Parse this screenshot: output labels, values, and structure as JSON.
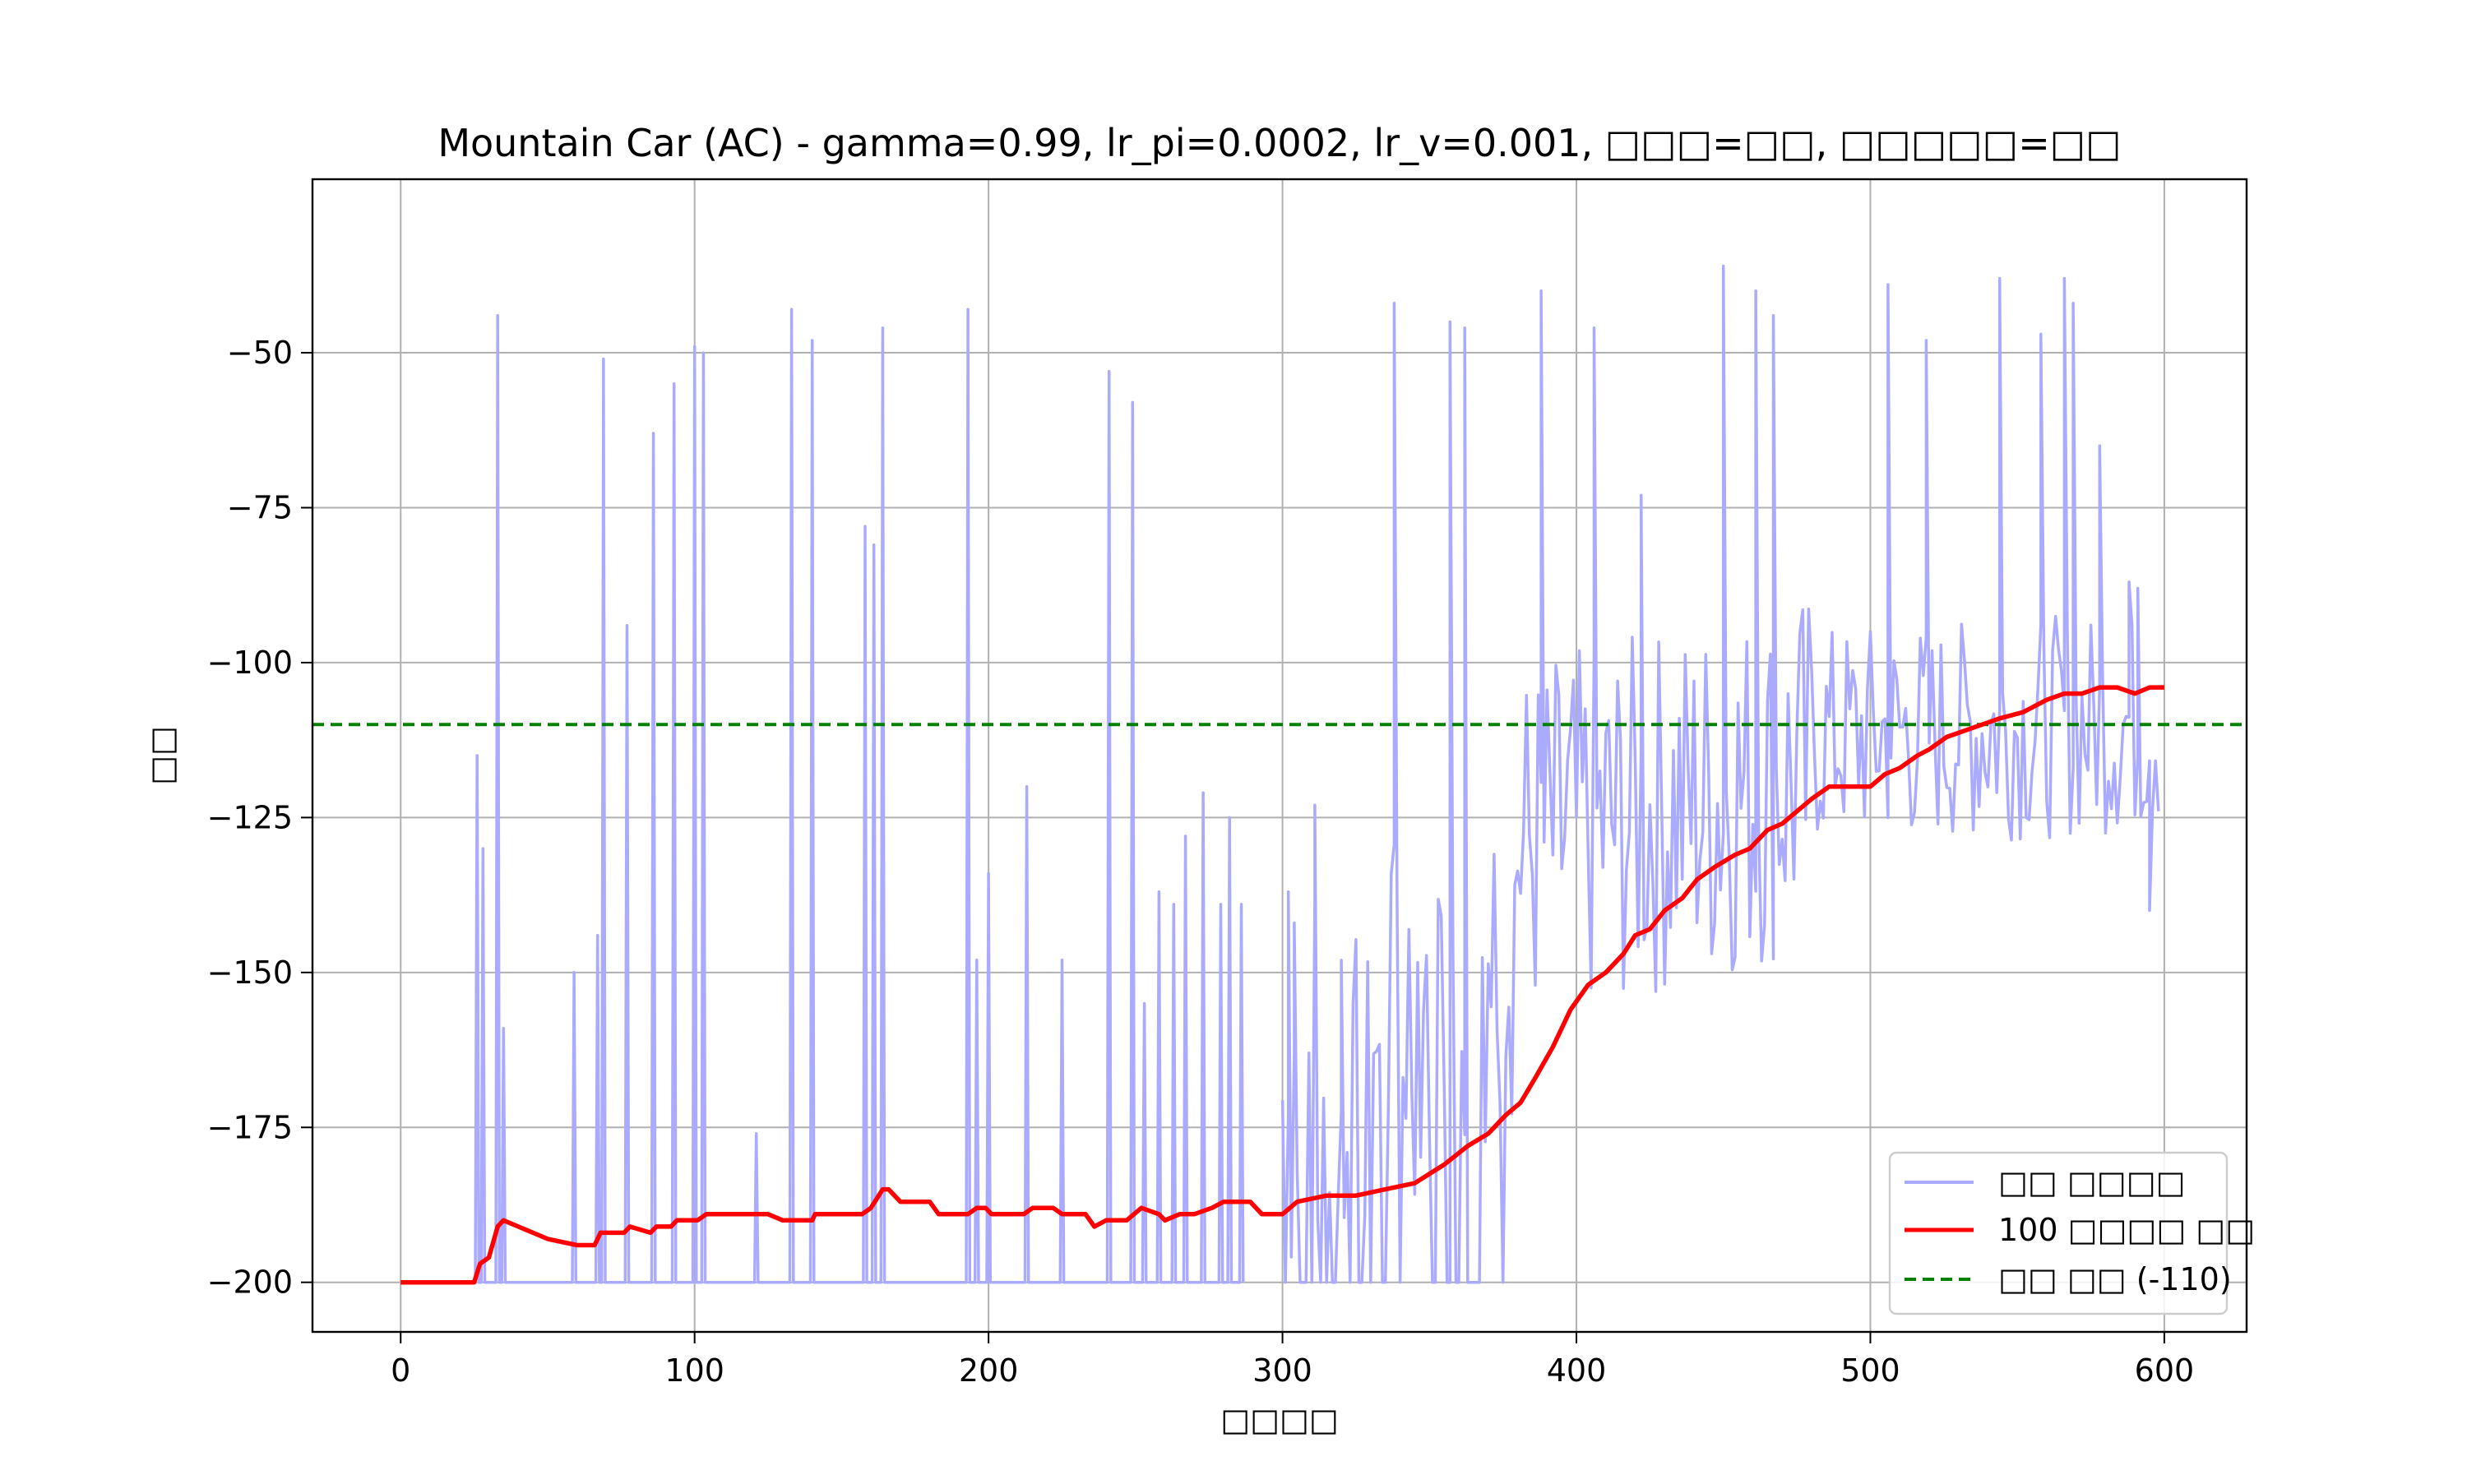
{
  "chart_data": {
    "type": "line",
    "title": "Mountain Car (AC) - gamma=0.99, lr_pi=0.0002, lr_v=0.001, □□□=□□, □□□□□=□□",
    "xlabel": "□□□□",
    "ylabel": "□□",
    "xlim": [
      -30,
      628
    ],
    "ylim": [
      -208,
      -22
    ],
    "xticks": [
      0,
      100,
      200,
      300,
      400,
      500,
      600
    ],
    "yticks": [
      -200,
      -175,
      -150,
      -125,
      -100,
      -75,
      -50
    ],
    "ytick_labels": [
      "−200",
      "−175",
      "−150",
      "−125",
      "−100",
      "−75",
      "−50"
    ],
    "grid": true,
    "legend_position": "lower-right",
    "colors": {
      "raw": "#aaaaff",
      "moving": "#ff0000",
      "target": "#008000"
    },
    "raw_series_label": "□□ □□□□",
    "moving_series_label": "100 □□□□ □□",
    "target_label": "□□ □□ (-110)",
    "target_value": -110,
    "raw_episode_spikes": [
      [
        26,
        -115
      ],
      [
        28,
        -130
      ],
      [
        33,
        -44
      ],
      [
        35,
        -159
      ],
      [
        59,
        -150
      ],
      [
        67,
        -144
      ],
      [
        69,
        -51
      ],
      [
        77,
        -94
      ],
      [
        86,
        -63
      ],
      [
        93,
        -55
      ],
      [
        100,
        -49
      ],
      [
        103,
        -50
      ],
      [
        121,
        -176
      ],
      [
        133,
        -43
      ],
      [
        140,
        -48
      ],
      [
        158,
        -78
      ],
      [
        161,
        -81
      ],
      [
        164,
        -46
      ],
      [
        193,
        -43
      ],
      [
        196,
        -148
      ],
      [
        200,
        -134
      ],
      [
        213,
        -120
      ],
      [
        225,
        -148
      ],
      [
        241,
        -53
      ],
      [
        249,
        -58
      ],
      [
        253,
        -155
      ],
      [
        258,
        -137
      ],
      [
        263,
        -139
      ],
      [
        267,
        -128
      ],
      [
        273,
        -121
      ],
      [
        279,
        -139
      ],
      [
        282,
        -125
      ],
      [
        286,
        -139
      ],
      [
        302,
        -137
      ],
      [
        304,
        -142
      ],
      [
        311,
        -123
      ],
      [
        320,
        -148
      ],
      [
        338,
        -42
      ],
      [
        357,
        -45
      ],
      [
        362,
        -46
      ],
      [
        388,
        -40
      ],
      [
        406,
        -46
      ],
      [
        422,
        -73
      ],
      [
        450,
        -36
      ],
      [
        461,
        -40
      ],
      [
        467,
        -44
      ],
      [
        506,
        -39
      ],
      [
        519,
        -48
      ],
      [
        544,
        -38
      ],
      [
        558,
        -47
      ],
      [
        566,
        -38
      ],
      [
        569,
        -42
      ],
      [
        578,
        -65
      ],
      [
        588,
        -87
      ],
      [
        591,
        -88
      ],
      [
        595,
        -140
      ]
    ],
    "moving_average": [
      [
        0,
        -200
      ],
      [
        25,
        -200
      ],
      [
        27,
        -197
      ],
      [
        30,
        -196
      ],
      [
        33,
        -191
      ],
      [
        35,
        -190
      ],
      [
        40,
        -191
      ],
      [
        50,
        -193
      ],
      [
        60,
        -194
      ],
      [
        66,
        -194
      ],
      [
        68,
        -192
      ],
      [
        76,
        -192
      ],
      [
        78,
        -191
      ],
      [
        85,
        -192
      ],
      [
        87,
        -191
      ],
      [
        92,
        -191
      ],
      [
        94,
        -190
      ],
      [
        101,
        -190
      ],
      [
        104,
        -189
      ],
      [
        125,
        -189
      ],
      [
        130,
        -190
      ],
      [
        140,
        -190
      ],
      [
        141,
        -189
      ],
      [
        157,
        -189
      ],
      [
        160,
        -188
      ],
      [
        164,
        -185
      ],
      [
        166,
        -185
      ],
      [
        170,
        -187
      ],
      [
        180,
        -187
      ],
      [
        183,
        -189
      ],
      [
        193,
        -189
      ],
      [
        196,
        -188
      ],
      [
        199,
        -188
      ],
      [
        201,
        -189
      ],
      [
        212,
        -189
      ],
      [
        215,
        -188
      ],
      [
        222,
        -188
      ],
      [
        225,
        -189
      ],
      [
        233,
        -189
      ],
      [
        236,
        -191
      ],
      [
        240,
        -190
      ],
      [
        247,
        -190
      ],
      [
        252,
        -188
      ],
      [
        258,
        -189
      ],
      [
        260,
        -190
      ],
      [
        265,
        -189
      ],
      [
        270,
        -189
      ],
      [
        276,
        -188
      ],
      [
        280,
        -187
      ],
      [
        289,
        -187
      ],
      [
        293,
        -189
      ],
      [
        300,
        -189
      ],
      [
        305,
        -187
      ],
      [
        315,
        -186
      ],
      [
        325,
        -186
      ],
      [
        335,
        -185
      ],
      [
        345,
        -184
      ],
      [
        355,
        -181
      ],
      [
        363,
        -178
      ],
      [
        370,
        -176
      ],
      [
        376,
        -173
      ],
      [
        381,
        -171
      ],
      [
        386,
        -167
      ],
      [
        392,
        -162
      ],
      [
        398,
        -156
      ],
      [
        404,
        -152
      ],
      [
        410,
        -150
      ],
      [
        416,
        -147
      ],
      [
        420,
        -144
      ],
      [
        425,
        -143
      ],
      [
        430,
        -140
      ],
      [
        436,
        -138
      ],
      [
        441,
        -135
      ],
      [
        447,
        -133
      ],
      [
        454,
        -131
      ],
      [
        459,
        -130
      ],
      [
        465,
        -127
      ],
      [
        470,
        -126
      ],
      [
        475,
        -124
      ],
      [
        480,
        -122
      ],
      [
        486,
        -120
      ],
      [
        492,
        -120
      ],
      [
        500,
        -120
      ],
      [
        505,
        -118
      ],
      [
        510,
        -117
      ],
      [
        516,
        -115
      ],
      [
        520,
        -114
      ],
      [
        526,
        -112
      ],
      [
        532,
        -111
      ],
      [
        538,
        -110
      ],
      [
        544,
        -109
      ],
      [
        552,
        -108
      ],
      [
        560,
        -106
      ],
      [
        566,
        -105
      ],
      [
        572,
        -105
      ],
      [
        578,
        -104
      ],
      [
        584,
        -104
      ],
      [
        590,
        -105
      ],
      [
        595,
        -104
      ],
      [
        600,
        -104
      ]
    ]
  }
}
